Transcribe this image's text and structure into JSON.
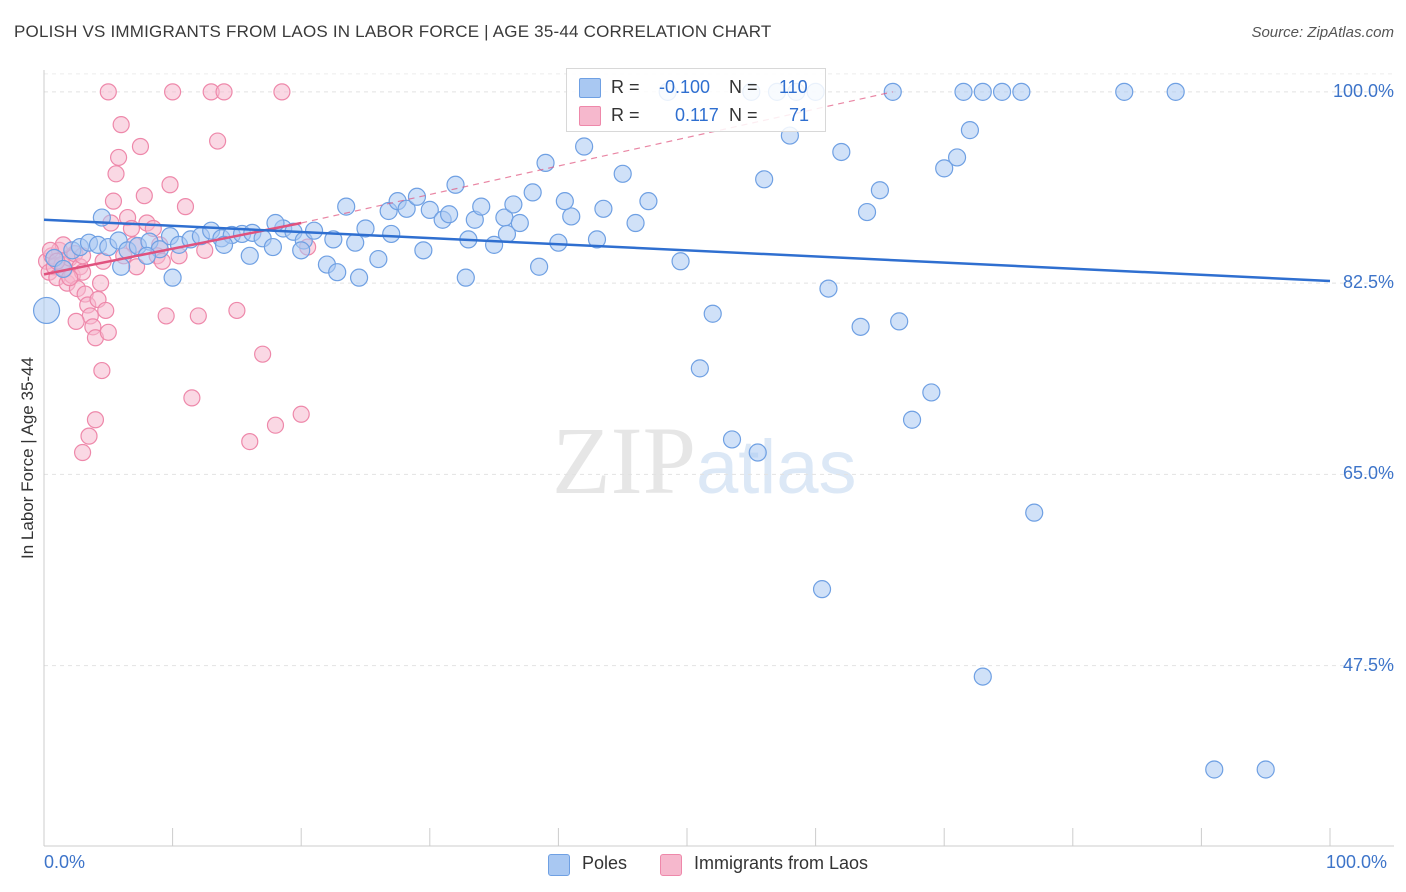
{
  "title": "POLISH VS IMMIGRANTS FROM LAOS IN LABOR FORCE | AGE 35-44 CORRELATION CHART",
  "source": "Source: ZipAtlas.com",
  "watermark": {
    "zip": "ZIP",
    "atlas": "atlas"
  },
  "colors": {
    "blue": "#6fa0e3",
    "blue_fill": "#a9c8f2",
    "blue_line": "#2f6fd0",
    "pink": "#ee88aa",
    "pink_fill": "#f6b8cd",
    "pink_line": "#e0527e"
  },
  "legend": {
    "r_label": "R =",
    "n_label": "N =",
    "rows": [
      {
        "r": "-0.100",
        "n": "110"
      },
      {
        "r": "0.117",
        "n": "71"
      }
    ]
  },
  "bottom_legend": [
    "Poles",
    "Immigrants from Laos"
  ],
  "chart_data": {
    "type": "scatter",
    "title": "POLISH VS IMMIGRANTS FROM LAOS IN LABOR FORCE | AGE 35-44 CORRELATION CHART",
    "xlabel": "",
    "ylabel": "In Labor Force | Age 35-44",
    "xlim": [
      0,
      100
    ],
    "ylim": [
      31,
      102
    ],
    "x_tick_labels": [
      "0.0%",
      "100.0%"
    ],
    "y_ticks": [
      100.0,
      82.5,
      65.0,
      47.5
    ],
    "y_tick_labels": [
      "100.0%",
      "82.5%",
      "65.0%",
      "47.5%"
    ],
    "series": [
      {
        "name": "Poles",
        "r": -0.1,
        "n": 110,
        "trend": {
          "x": [
            0,
            100
          ],
          "y": [
            88.3,
            82.7
          ]
        },
        "points": [
          [
            0.2,
            80.0
          ],
          [
            0.8,
            84.8
          ],
          [
            1.5,
            83.8
          ],
          [
            2.2,
            85.5
          ],
          [
            2.8,
            85.8
          ],
          [
            3.5,
            86.2
          ],
          [
            4.2,
            86.0
          ],
          [
            5.0,
            85.8
          ],
          [
            5.8,
            86.4
          ],
          [
            6.5,
            85.5
          ],
          [
            7.3,
            85.9
          ],
          [
            8.2,
            86.3
          ],
          [
            9.0,
            85.6
          ],
          [
            9.8,
            86.8
          ],
          [
            10.5,
            86.0
          ],
          [
            11.4,
            86.5
          ],
          [
            12.2,
            86.8
          ],
          [
            13.0,
            87.3
          ],
          [
            13.8,
            86.6
          ],
          [
            14.6,
            86.9
          ],
          [
            15.4,
            87.0
          ],
          [
            16.2,
            87.1
          ],
          [
            17.0,
            86.6
          ],
          [
            17.8,
            85.8
          ],
          [
            18.6,
            87.5
          ],
          [
            19.4,
            87.2
          ],
          [
            20.2,
            86.4
          ],
          [
            21.0,
            87.3
          ],
          [
            22.0,
            84.2
          ],
          [
            22.8,
            83.5
          ],
          [
            23.5,
            89.5
          ],
          [
            24.2,
            86.2
          ],
          [
            25.0,
            87.5
          ],
          [
            26.0,
            84.7
          ],
          [
            26.8,
            89.1
          ],
          [
            27.5,
            90.0
          ],
          [
            28.2,
            89.3
          ],
          [
            29.0,
            90.4
          ],
          [
            30.0,
            89.2
          ],
          [
            31.0,
            88.3
          ],
          [
            32.0,
            91.5
          ],
          [
            32.8,
            83.0
          ],
          [
            33.5,
            88.3
          ],
          [
            34.0,
            89.5
          ],
          [
            35.0,
            86.0
          ],
          [
            35.8,
            88.5
          ],
          [
            36.5,
            89.7
          ],
          [
            37.0,
            88.0
          ],
          [
            38.0,
            90.8
          ],
          [
            39.0,
            93.5
          ],
          [
            40.0,
            86.2
          ],
          [
            41.0,
            88.6
          ],
          [
            42.0,
            95.0
          ],
          [
            43.5,
            89.3
          ],
          [
            45.0,
            92.5
          ],
          [
            47.0,
            90.0
          ],
          [
            48.5,
            100.0
          ],
          [
            49.5,
            84.5
          ],
          [
            51.0,
            74.7
          ],
          [
            52.0,
            79.7
          ],
          [
            53.5,
            68.2
          ],
          [
            55.0,
            100.0
          ],
          [
            55.5,
            67.0
          ],
          [
            57.0,
            100.0
          ],
          [
            58.5,
            100.0
          ],
          [
            60.0,
            100.0
          ],
          [
            61.0,
            82.0
          ],
          [
            62.0,
            94.5
          ],
          [
            63.5,
            78.5
          ],
          [
            65.0,
            91.0
          ],
          [
            66.0,
            100.0
          ],
          [
            66.5,
            79.0
          ],
          [
            67.5,
            70.0
          ],
          [
            69.0,
            72.5
          ],
          [
            70.0,
            93.0
          ],
          [
            71.0,
            94.0
          ],
          [
            71.5,
            100.0
          ],
          [
            72.0,
            96.5
          ],
          [
            73.0,
            100.0
          ],
          [
            74.5,
            100.0
          ],
          [
            76.0,
            100.0
          ],
          [
            60.5,
            54.5
          ],
          [
            73.0,
            46.5
          ],
          [
            77.0,
            61.5
          ],
          [
            84.0,
            100.0
          ],
          [
            88.0,
            100.0
          ],
          [
            91.0,
            38.0
          ],
          [
            95.0,
            38.0
          ],
          [
            4.5,
            88.5
          ],
          [
            6.0,
            84.0
          ],
          [
            8.0,
            85.0
          ],
          [
            10.0,
            83.0
          ],
          [
            14.0,
            86.0
          ],
          [
            16.0,
            85.0
          ],
          [
            18.0,
            88.0
          ],
          [
            20.0,
            85.5
          ],
          [
            22.5,
            86.5
          ],
          [
            24.5,
            83.0
          ],
          [
            27.0,
            87.0
          ],
          [
            29.5,
            85.5
          ],
          [
            31.5,
            88.8
          ],
          [
            33.0,
            86.5
          ],
          [
            36.0,
            87.0
          ],
          [
            38.5,
            84.0
          ],
          [
            40.5,
            90.0
          ],
          [
            43.0,
            86.5
          ],
          [
            46.0,
            88.0
          ],
          [
            56.0,
            92.0
          ],
          [
            58.0,
            96.0
          ],
          [
            64.0,
            89.0
          ]
        ]
      },
      {
        "name": "Immigrants from Laos",
        "r": 0.117,
        "n": 71,
        "trend": {
          "x": [
            0,
            20
          ],
          "y": [
            83.3,
            88.0
          ]
        },
        "trend_extension": {
          "x": [
            20,
            66
          ],
          "y": [
            88.0,
            100.0
          ]
        },
        "points": [
          [
            0.2,
            84.5
          ],
          [
            0.4,
            83.5
          ],
          [
            0.6,
            85.0
          ],
          [
            0.8,
            84.0
          ],
          [
            1.0,
            83.0
          ],
          [
            1.2,
            85.5
          ],
          [
            1.4,
            84.2
          ],
          [
            1.6,
            83.8
          ],
          [
            1.8,
            82.5
          ],
          [
            2.0,
            84.8
          ],
          [
            2.2,
            83.2
          ],
          [
            2.4,
            85.2
          ],
          [
            2.6,
            82.0
          ],
          [
            2.8,
            84.0
          ],
          [
            3.0,
            83.5
          ],
          [
            3.2,
            81.5
          ],
          [
            3.4,
            80.5
          ],
          [
            3.6,
            79.5
          ],
          [
            3.8,
            78.5
          ],
          [
            4.0,
            77.5
          ],
          [
            4.2,
            81.0
          ],
          [
            4.4,
            82.5
          ],
          [
            4.6,
            84.5
          ],
          [
            4.8,
            80.0
          ],
          [
            5.0,
            78.0
          ],
          [
            5.2,
            88.0
          ],
          [
            5.4,
            90.0
          ],
          [
            5.6,
            92.5
          ],
          [
            5.8,
            94.0
          ],
          [
            6.0,
            97.0
          ],
          [
            6.5,
            88.5
          ],
          [
            7.0,
            86.0
          ],
          [
            7.5,
            95.0
          ],
          [
            8.0,
            88.0
          ],
          [
            8.5,
            87.5
          ],
          [
            9.0,
            86.0
          ],
          [
            9.5,
            79.5
          ],
          [
            10.0,
            100.0
          ],
          [
            10.5,
            85.0
          ],
          [
            11.0,
            89.5
          ],
          [
            11.5,
            72.0
          ],
          [
            12.0,
            79.5
          ],
          [
            12.5,
            85.5
          ],
          [
            13.0,
            100.0
          ],
          [
            13.5,
            95.5
          ],
          [
            14.0,
            100.0
          ],
          [
            15.0,
            80.0
          ],
          [
            16.0,
            68.0
          ],
          [
            17.0,
            76.0
          ],
          [
            18.0,
            69.5
          ],
          [
            18.5,
            100.0
          ],
          [
            20.0,
            70.5
          ],
          [
            20.5,
            85.8
          ],
          [
            1.5,
            86.0
          ],
          [
            2.5,
            79.0
          ],
          [
            3.0,
            67.0
          ],
          [
            3.5,
            68.5
          ],
          [
            4.0,
            70.0
          ],
          [
            4.5,
            74.5
          ],
          [
            5.0,
            100.0
          ],
          [
            0.5,
            85.5
          ],
          [
            1.0,
            84.5
          ],
          [
            2.0,
            83.0
          ],
          [
            3.0,
            85.0
          ],
          [
            6.2,
            85.0
          ],
          [
            6.8,
            87.5
          ],
          [
            7.2,
            84.0
          ],
          [
            7.8,
            90.5
          ],
          [
            8.8,
            85.0
          ],
          [
            9.2,
            84.5
          ],
          [
            9.8,
            91.5
          ]
        ]
      }
    ]
  }
}
